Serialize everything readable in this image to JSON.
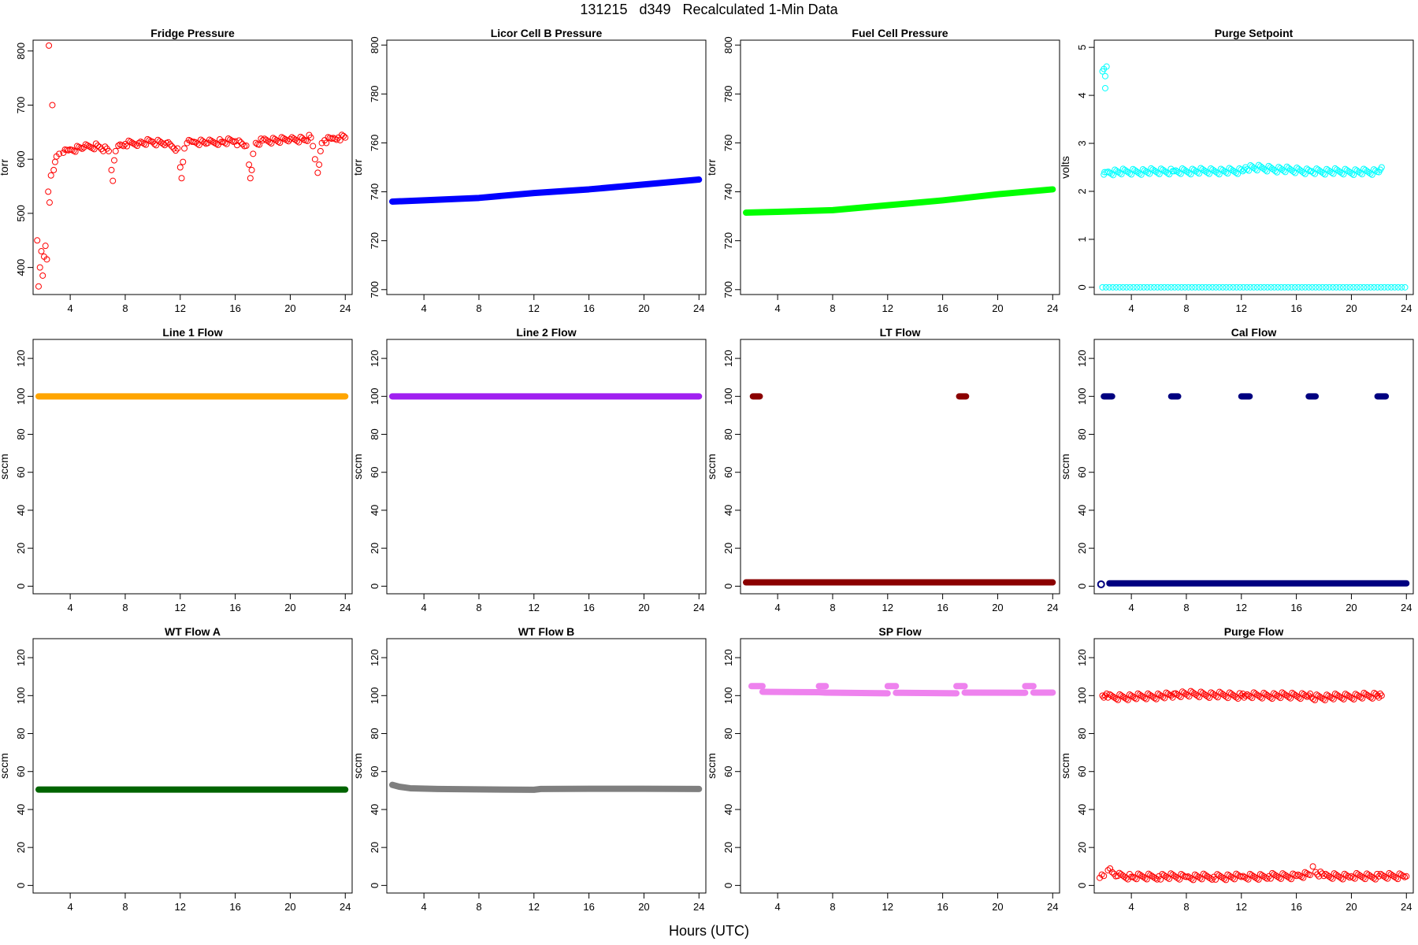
{
  "figure": {
    "title": "131215   d349   Recalculated 1-Min Data",
    "xlabel": "Hours (UTC)"
  },
  "chart_data": [
    {
      "type": "scatter",
      "title": "Fridge Pressure",
      "ylabel": "torr",
      "xlim": [
        1.3,
        24.5
      ],
      "ylim": [
        350,
        820
      ],
      "xticks": [
        4,
        8,
        12,
        16,
        20,
        24
      ],
      "yticks": [
        400,
        500,
        600,
        700,
        800
      ],
      "color": "#ff0000",
      "marker": "open-circle",
      "series": [
        {
          "x": [
            1.6,
            1.7,
            1.8,
            1.9,
            2.0,
            2.1,
            2.2,
            2.3,
            2.4,
            2.45,
            2.5,
            2.6,
            2.7,
            2.8,
            2.9,
            3.0,
            3.2,
            3.5,
            4.0,
            5.0,
            6.0,
            6.8,
            7.0,
            7.1,
            7.2,
            7.3,
            7.5,
            8.0,
            9.0,
            10.0,
            11.0,
            11.8,
            12.0,
            12.1,
            12.2,
            12.3,
            12.5,
            13.0,
            14.0,
            15.0,
            16.0,
            16.8,
            17.0,
            17.1,
            17.2,
            17.3,
            17.5,
            18.0,
            19.0,
            20.0,
            21.0,
            21.5,
            21.8,
            22.0,
            22.1,
            22.2,
            22.3,
            22.5,
            23.0,
            23.5,
            24.0
          ],
          "y": [
            450,
            365,
            400,
            430,
            385,
            420,
            440,
            415,
            540,
            810,
            520,
            570,
            700,
            580,
            595,
            605,
            610,
            612,
            618,
            622,
            625,
            615,
            580,
            560,
            598,
            615,
            625,
            628,
            630,
            632,
            630,
            620,
            585,
            565,
            595,
            620,
            630,
            632,
            630,
            632,
            633,
            625,
            590,
            565,
            580,
            610,
            630,
            635,
            635,
            637,
            636,
            640,
            600,
            575,
            590,
            615,
            630,
            635,
            638,
            640,
            640
          ]
        }
      ]
    },
    {
      "type": "scatter",
      "title": "Licor Cell B Pressure",
      "ylabel": "torr",
      "xlim": [
        1.3,
        24.5
      ],
      "ylim": [
        698,
        802
      ],
      "xticks": [
        4,
        8,
        12,
        16,
        20,
        24
      ],
      "yticks": [
        700,
        720,
        740,
        760,
        780,
        800
      ],
      "color": "#0000ff",
      "marker": "filled-line",
      "series": [
        {
          "x": [
            1.7,
            4,
            8,
            12,
            16,
            20,
            24
          ],
          "y": [
            736,
            736.5,
            737.5,
            739.5,
            741,
            743,
            745
          ]
        }
      ]
    },
    {
      "type": "scatter",
      "title": "Fuel Cell Pressure",
      "ylabel": "torr",
      "xlim": [
        1.3,
        24.5
      ],
      "ylim": [
        698,
        802
      ],
      "xticks": [
        4,
        8,
        12,
        16,
        20,
        24
      ],
      "yticks": [
        700,
        720,
        740,
        760,
        780,
        800
      ],
      "color": "#00ff00",
      "marker": "filled-line",
      "series": [
        {
          "x": [
            1.7,
            4,
            8,
            12,
            16,
            20,
            24
          ],
          "y": [
            731.5,
            731.8,
            732.5,
            734.5,
            736.5,
            739,
            741
          ]
        }
      ]
    },
    {
      "type": "scatter",
      "title": "Purge Setpoint",
      "ylabel": "volts",
      "xlim": [
        1.3,
        24.5
      ],
      "ylim": [
        -0.15,
        5.15
      ],
      "xticks": [
        4,
        8,
        12,
        16,
        20,
        24
      ],
      "yticks": [
        0,
        1,
        2,
        3,
        4,
        5
      ],
      "color": "#00ffff",
      "marker": "open-circle",
      "series": [
        {
          "x": [
            1.9,
            2.0,
            2.1,
            2.1,
            2.2,
            2.0,
            2.05,
            2.2,
            7.0,
            7.1,
            12.1,
            12.2,
            12.3,
            17.0,
            17.1,
            22.0,
            22.1,
            22.2
          ],
          "y": [
            4.5,
            4.55,
            4.4,
            4.15,
            4.6,
            2.35,
            2.4,
            2.4,
            2.42,
            2.42,
            2.42,
            2.45,
            2.5,
            2.42,
            2.42,
            2.4,
            2.45,
            2.5
          ]
        },
        {
          "x": [
            1.9,
            24
          ],
          "y": [
            0,
            0
          ]
        }
      ]
    },
    {
      "type": "scatter",
      "title": "Line 1 Flow",
      "ylabel": "sccm",
      "xlim": [
        1.3,
        24.5
      ],
      "ylim": [
        -4,
        130
      ],
      "xticks": [
        4,
        8,
        12,
        16,
        20,
        24
      ],
      "yticks": [
        0,
        20,
        40,
        60,
        80,
        100,
        120
      ],
      "color": "#ffa500",
      "marker": "filled-line",
      "series": [
        {
          "x": [
            1.7,
            24
          ],
          "y": [
            100,
            100
          ]
        }
      ]
    },
    {
      "type": "scatter",
      "title": "Line 2 Flow",
      "ylabel": "sccm",
      "xlim": [
        1.3,
        24.5
      ],
      "ylim": [
        -4,
        130
      ],
      "xticks": [
        4,
        8,
        12,
        16,
        20,
        24
      ],
      "yticks": [
        0,
        20,
        40,
        60,
        80,
        100,
        120
      ],
      "color": "#a020f0",
      "marker": "filled-line",
      "series": [
        {
          "x": [
            1.7,
            24
          ],
          "y": [
            100,
            100
          ]
        }
      ]
    },
    {
      "type": "scatter",
      "title": "LT Flow",
      "ylabel": "sccm",
      "xlim": [
        1.3,
        24.5
      ],
      "ylim": [
        -4,
        130
      ],
      "xticks": [
        4,
        8,
        12,
        16,
        20,
        24
      ],
      "yticks": [
        0,
        20,
        40,
        60,
        80,
        100,
        120
      ],
      "color": "#8b0000",
      "marker": "filled-line",
      "series": [
        {
          "x": [
            2.2,
            2.7
          ],
          "y": [
            100,
            100
          ]
        },
        {
          "x": [
            17.2,
            17.7
          ],
          "y": [
            100,
            100
          ]
        },
        {
          "x": [
            1.7,
            24
          ],
          "y": [
            2,
            2
          ]
        }
      ]
    },
    {
      "type": "scatter",
      "title": "Cal Flow",
      "ylabel": "sccm",
      "xlim": [
        1.3,
        24.5
      ],
      "ylim": [
        -4,
        130
      ],
      "xticks": [
        4,
        8,
        12,
        16,
        20,
        24
      ],
      "yticks": [
        0,
        20,
        40,
        60,
        80,
        100,
        120
      ],
      "color": "#000080",
      "marker": "filled-line",
      "series": [
        {
          "x": [
            2.0,
            2.6
          ],
          "y": [
            100,
            100
          ]
        },
        {
          "x": [
            6.9,
            7.4
          ],
          "y": [
            100,
            100
          ]
        },
        {
          "x": [
            12.0,
            12.6
          ],
          "y": [
            100,
            100
          ]
        },
        {
          "x": [
            16.9,
            17.4
          ],
          "y": [
            100,
            100
          ]
        },
        {
          "x": [
            21.9,
            22.5
          ],
          "y": [
            100,
            100
          ]
        },
        {
          "x": [
            2.4,
            24
          ],
          "y": [
            1.5,
            1.5
          ]
        },
        {
          "x": [
            1.8,
            1.8
          ],
          "y": [
            1,
            1
          ]
        }
      ]
    },
    {
      "type": "scatter",
      "title": "WT Flow A",
      "ylabel": "sccm",
      "xlim": [
        1.3,
        24.5
      ],
      "ylim": [
        -4,
        130
      ],
      "xticks": [
        4,
        8,
        12,
        16,
        20,
        24
      ],
      "yticks": [
        0,
        20,
        40,
        60,
        80,
        100,
        120
      ],
      "color": "#006400",
      "marker": "filled-line",
      "series": [
        {
          "x": [
            1.7,
            24
          ],
          "y": [
            50.5,
            50.5
          ]
        }
      ]
    },
    {
      "type": "scatter",
      "title": "WT Flow B",
      "ylabel": "sccm",
      "xlim": [
        1.3,
        24.5
      ],
      "ylim": [
        -4,
        130
      ],
      "xticks": [
        4,
        8,
        12,
        16,
        20,
        24
      ],
      "yticks": [
        0,
        20,
        40,
        60,
        80,
        100,
        120
      ],
      "color": "#7f7f7f",
      "marker": "filled-line",
      "series": [
        {
          "x": [
            1.7,
            2.2,
            3.0,
            5.0,
            8.0,
            12.0,
            12.5,
            16.0,
            20.0,
            24.0
          ],
          "y": [
            53,
            52,
            51.2,
            50.8,
            50.6,
            50.4,
            50.8,
            50.9,
            50.9,
            50.8
          ]
        }
      ]
    },
    {
      "type": "scatter",
      "title": "SP Flow",
      "ylabel": "sccm",
      "xlim": [
        1.3,
        24.5
      ],
      "ylim": [
        -4,
        130
      ],
      "xticks": [
        4,
        8,
        12,
        16,
        20,
        24
      ],
      "yticks": [
        0,
        20,
        40,
        60,
        80,
        100,
        120
      ],
      "color": "#ee82ee",
      "marker": "filled-line",
      "series": [
        {
          "x": [
            2.1,
            2.9
          ],
          "y": [
            105,
            105
          ]
        },
        {
          "x": [
            7.0,
            7.5
          ],
          "y": [
            105,
            105
          ]
        },
        {
          "x": [
            12.0,
            12.6
          ],
          "y": [
            105,
            105
          ]
        },
        {
          "x": [
            17.0,
            17.6
          ],
          "y": [
            105,
            105
          ]
        },
        {
          "x": [
            22.0,
            22.6
          ],
          "y": [
            105,
            105
          ]
        },
        {
          "x": [
            2.9,
            7.0,
            7.5,
            12.0
          ],
          "y": [
            102,
            101.8,
            101.6,
            101.2
          ]
        },
        {
          "x": [
            12.6,
            17.0
          ],
          "y": [
            101.5,
            101.2
          ]
        },
        {
          "x": [
            17.6,
            22.0
          ],
          "y": [
            101.6,
            101.5
          ]
        },
        {
          "x": [
            22.6,
            24.0
          ],
          "y": [
            101.6,
            101.6
          ]
        }
      ]
    },
    {
      "type": "scatter",
      "title": "Purge Flow",
      "ylabel": "sccm",
      "xlim": [
        1.3,
        24.5
      ],
      "ylim": [
        -4,
        130
      ],
      "xticks": [
        4,
        8,
        12,
        16,
        20,
        24
      ],
      "yticks": [
        0,
        20,
        40,
        60,
        80,
        100,
        120
      ],
      "color": "#ff0000",
      "marker": "open-circle",
      "series": [
        {
          "x": [
            1.9,
            2.0,
            2.1,
            2.2,
            2.3,
            6.9,
            7.0,
            7.1,
            12.0,
            12.1,
            12.2,
            12.3,
            16.9,
            17.0,
            17.1,
            21.9,
            22.0,
            22.1,
            22.2
          ],
          "y": [
            100,
            99,
            100,
            101,
            99,
            100,
            99,
            101,
            100,
            101,
            99,
            100,
            100,
            101,
            99,
            100,
            99,
            101,
            100
          ]
        },
        {
          "x": [
            1.7,
            2.0,
            2.3,
            2.6,
            3.0,
            4.0,
            6.0,
            8.0,
            10.0,
            12.0,
            14.0,
            16.0,
            17.0,
            17.2,
            17.4,
            18.0,
            20.0,
            22.0,
            24.0
          ],
          "y": [
            4,
            5,
            8,
            7,
            5,
            4.5,
            4.8,
            4.5,
            4.5,
            4.5,
            4.8,
            5,
            5.5,
            10,
            7,
            5,
            4.8,
            4.8,
            4.8
          ]
        }
      ]
    }
  ]
}
